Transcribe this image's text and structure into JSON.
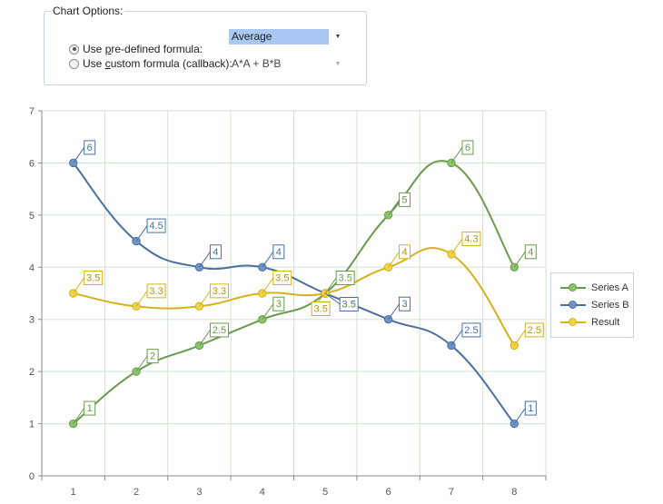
{
  "options": {
    "title": "Chart Options:",
    "predefined": {
      "label_pre": "Use ",
      "label_ul": "p",
      "label_post": "re-defined formula:",
      "checked": true,
      "value": "Average"
    },
    "custom": {
      "label_pre": "Use ",
      "label_ul": "c",
      "label_post": "ustom formula (callback):",
      "checked": false,
      "value": "A*A + B*B"
    }
  },
  "chart_data": {
    "type": "line",
    "x": [
      1,
      2,
      3,
      4,
      5,
      6,
      7,
      8
    ],
    "xlim": [
      0.5,
      8.5
    ],
    "ylim": [
      0,
      7
    ],
    "yticks": [
      0,
      1,
      2,
      3,
      4,
      5,
      6,
      7
    ],
    "grid": true,
    "legend_position": "right",
    "series": [
      {
        "name": "Series A",
        "color": "#6a9a4f",
        "fill": "#8cc46a",
        "values": [
          1,
          2,
          2.5,
          3,
          3.5,
          5,
          6,
          4
        ],
        "labels": [
          "1",
          "2",
          "2.5",
          "3",
          "3.5",
          "5",
          "6",
          "4"
        ]
      },
      {
        "name": "Series B",
        "color": "#4a6fa0",
        "fill": "#6f93c8",
        "values": [
          6,
          4.5,
          4,
          4,
          3.5,
          3,
          2.5,
          1
        ],
        "labels": [
          "6",
          "4.5",
          "4",
          "4",
          "3.5",
          "3",
          "2.5",
          "1"
        ]
      },
      {
        "name": "Result",
        "color": "#d6b21c",
        "fill": "#efd34a",
        "values": [
          3.5,
          3.25,
          3.25,
          3.5,
          3.5,
          4,
          4.25,
          2.5
        ],
        "labels": [
          "3.5",
          "3.3",
          "3.3",
          "3.5",
          "3.5",
          "4",
          "4.3",
          "2.5"
        ]
      }
    ]
  }
}
